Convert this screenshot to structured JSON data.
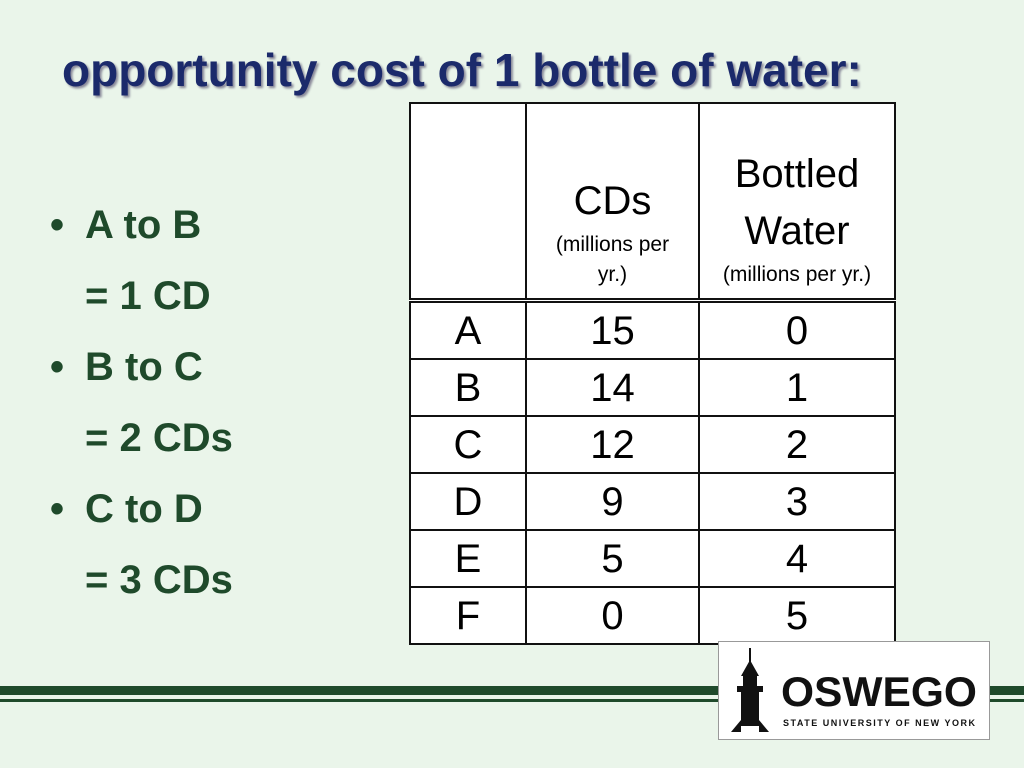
{
  "title": "opportunity cost of 1 bottle of water:",
  "bullets": [
    {
      "label": "A to B",
      "detail": "= 1 CD"
    },
    {
      "label": "B to C",
      "detail": "= 2 CDs"
    },
    {
      "label": "C to D",
      "detail": "= 3 CDs"
    }
  ],
  "table": {
    "columns": [
      {
        "name": "CDs",
        "unit": "(millions per yr.)"
      },
      {
        "name": "Bottled Water",
        "unit": "(millions per yr.)"
      }
    ],
    "rows": [
      [
        "A",
        15,
        0
      ],
      [
        "B",
        14,
        1
      ],
      [
        "C",
        12,
        2
      ],
      [
        "D",
        9,
        3
      ],
      [
        "E",
        5,
        4
      ],
      [
        "F",
        0,
        5
      ]
    ]
  },
  "logo": {
    "name": "OSWEGO",
    "subtitle": "STATE UNIVERSITY OF NEW YORK"
  }
}
